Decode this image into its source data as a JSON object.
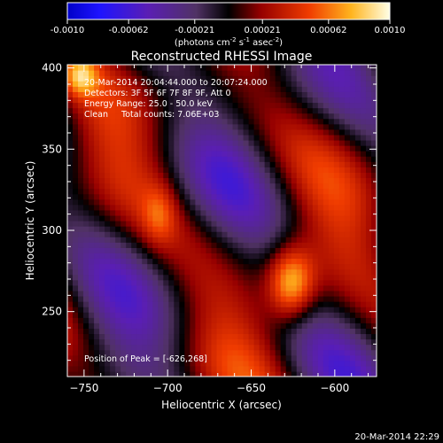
{
  "chart_data": {
    "type": "heatmap",
    "title": "Reconstructed RHESSI Image",
    "xlabel": "Heliocentric X (arcsec)",
    "ylabel": "Heliocentric Y (arcsec)",
    "xlim": [
      -760,
      -575
    ],
    "ylim": [
      210,
      402
    ],
    "x_ticks": [
      -750,
      -700,
      -650,
      -600
    ],
    "y_ticks": [
      250,
      300,
      350,
      400
    ],
    "colorbar": {
      "min": -0.001,
      "max": 0.001,
      "tick_values": [
        -0.001,
        -0.00062,
        -0.00021,
        0.00021,
        0.00062,
        0.001
      ],
      "tick_labels": [
        "-0.0010",
        "-0.00062",
        "-0.00021",
        "0.00021",
        "0.00062",
        "0.0010"
      ],
      "label_prefix": "(photons cm",
      "label_sup1": "-2",
      "label_mid1": " s",
      "label_sup2": "-1",
      "label_mid2": " asec",
      "label_sup3": "-2",
      "label_suffix": ")"
    },
    "annotations": [
      "20-Mar-2014 20:04:44.000 to 20:07:24.000",
      "Detectors: 3F 5F 6F 7F 8F 9F, Att 0",
      "Energy Range: 25.0 - 50.0 keV",
      "Clean     Total counts: 7.06E+03"
    ],
    "peak_label": "Position of Peak = [-626,268]",
    "peak_position": [
      -626,
      268
    ],
    "timestamp": "20-Mar-2014 22:29"
  }
}
